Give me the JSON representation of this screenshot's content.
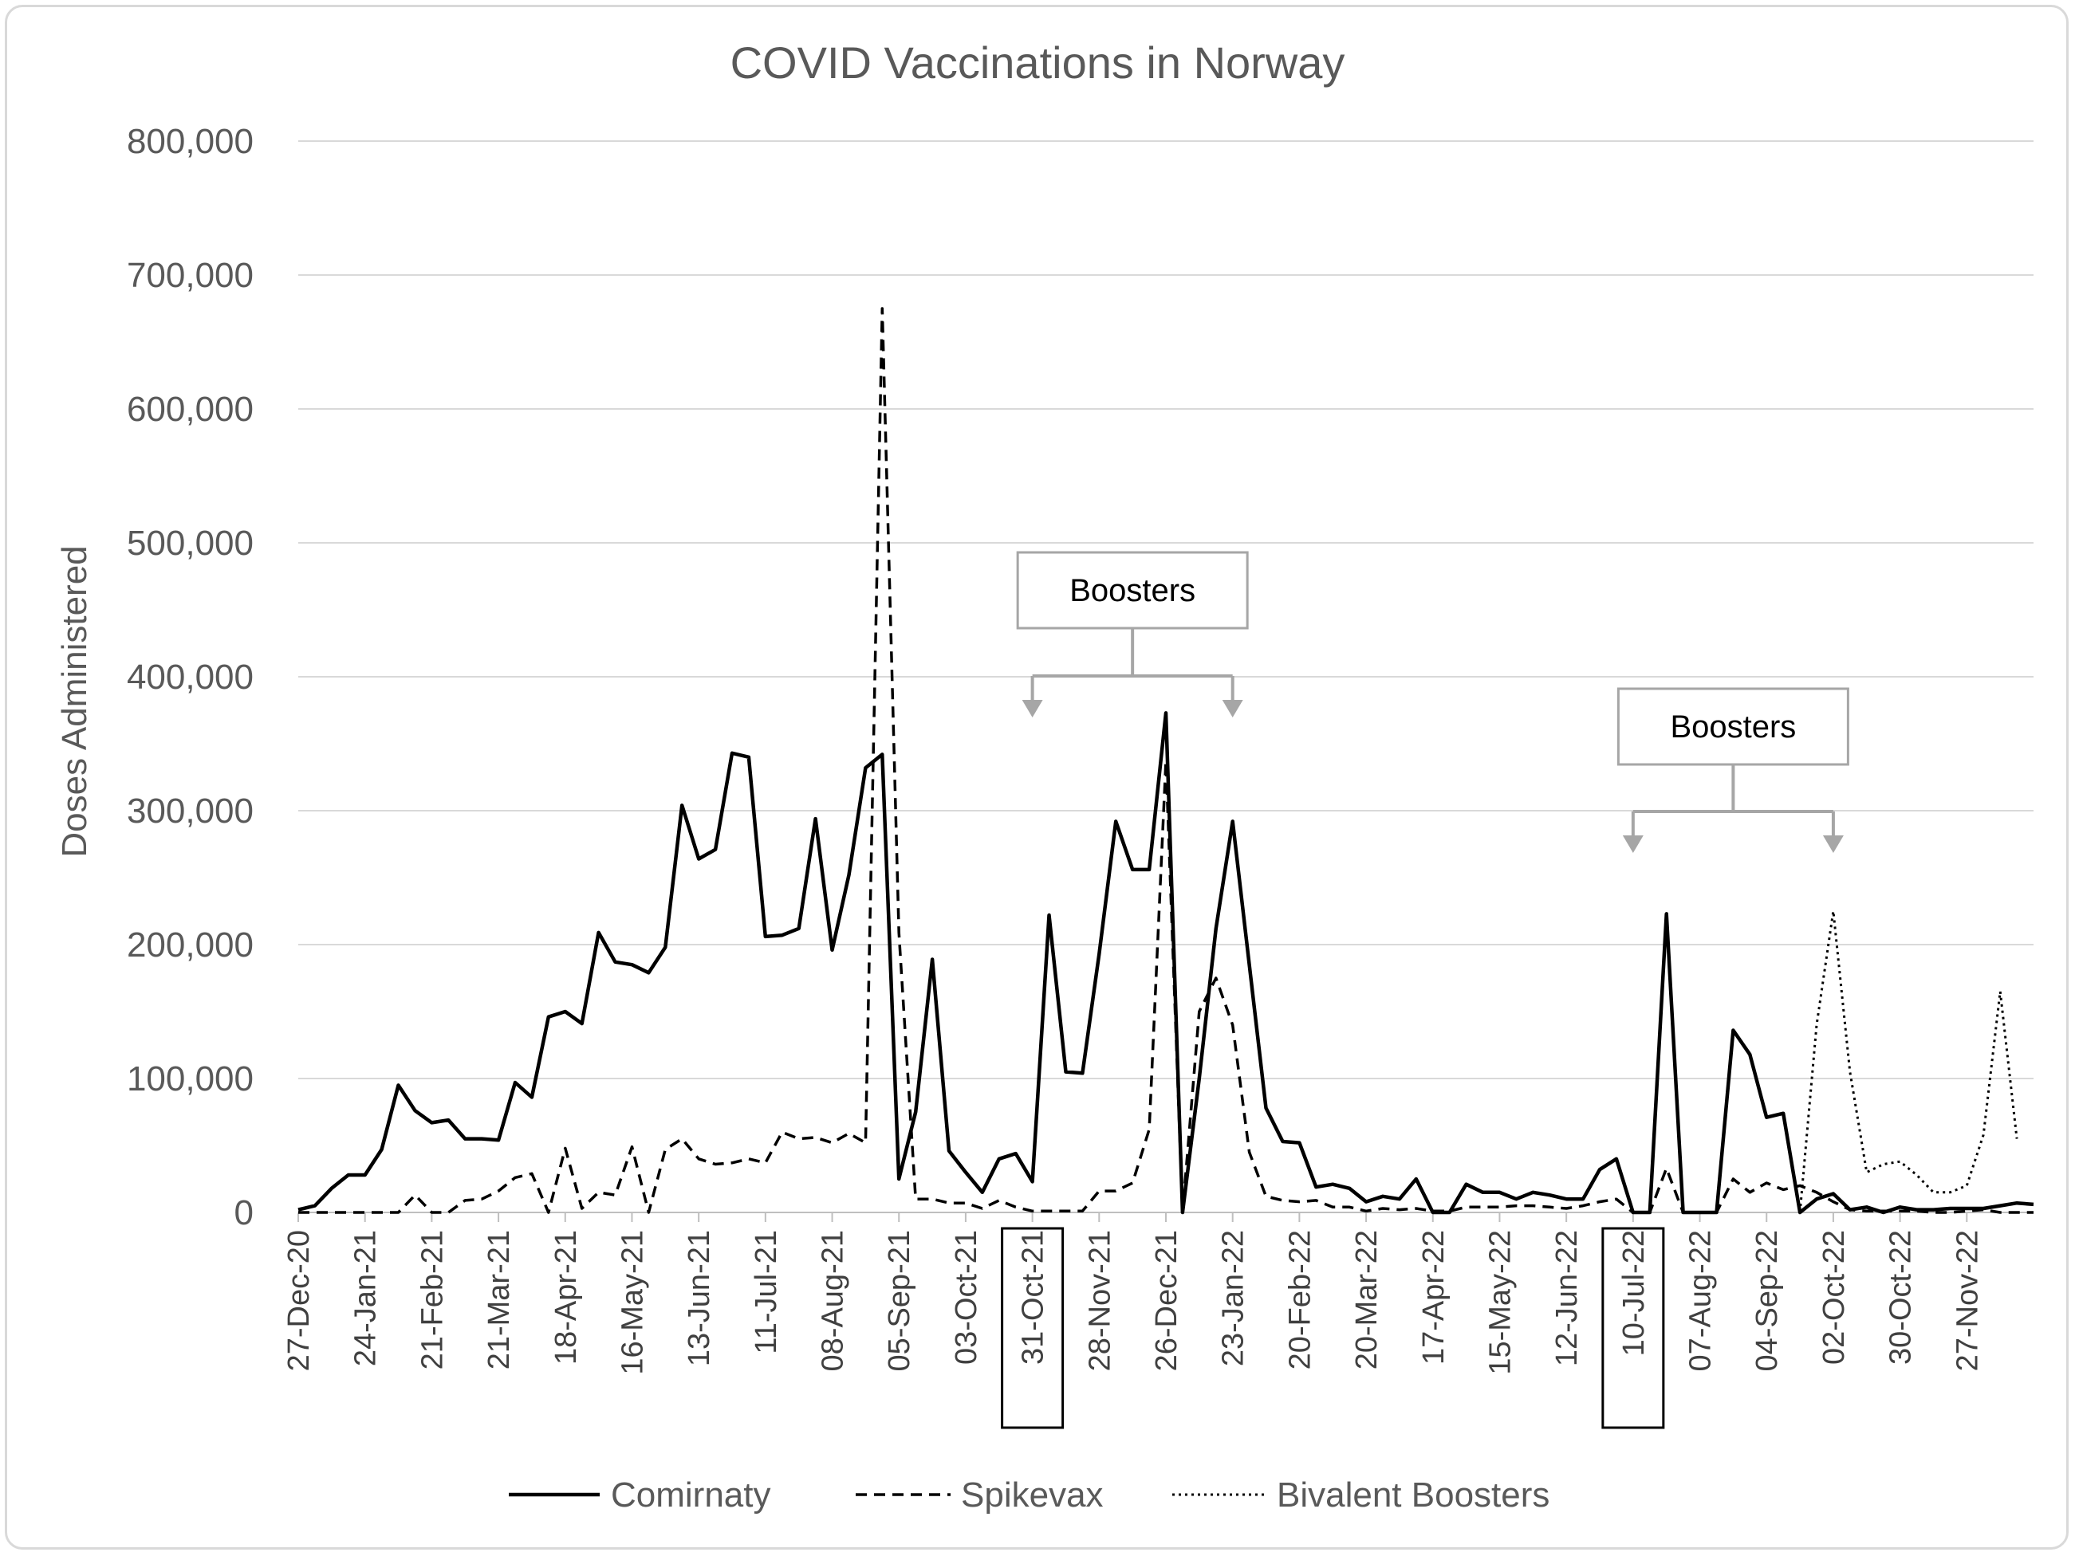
{
  "chart_data": {
    "type": "line",
    "title": "COVID Vaccinations in Norway",
    "ylabel": "Doses Administered",
    "xlabel": "",
    "ylim": [
      0,
      800000
    ],
    "yticks": [
      "0",
      "100,000",
      "200,000",
      "300,000",
      "400,000",
      "500,000",
      "600,000",
      "700,000",
      "800,000"
    ],
    "x_tick_labels": [
      "27-Dec-20",
      "24-Jan-21",
      "21-Feb-21",
      "21-Mar-21",
      "18-Apr-21",
      "16-May-21",
      "13-Jun-21",
      "11-Jul-21",
      "08-Aug-21",
      "05-Sep-21",
      "03-Oct-21",
      "31-Oct-21",
      "28-Nov-21",
      "26-Dec-21",
      "23-Jan-22",
      "20-Feb-22",
      "20-Mar-22",
      "17-Apr-22",
      "15-May-22",
      "12-Jun-22",
      "10-Jul-22",
      "07-Aug-22",
      "04-Sep-22",
      "02-Oct-22",
      "30-Oct-22",
      "27-Nov-22"
    ],
    "boxed_tick_labels": [
      "31-Oct-21",
      "10-Jul-22"
    ],
    "grid": true,
    "legend_position": "bottom",
    "x_start": "27-Dec-20",
    "x_interval": "1 week",
    "series": [
      {
        "name": "Comirnaty",
        "style": "solid",
        "values": [
          2000,
          5000,
          18000,
          28000,
          28000,
          47000,
          95000,
          76000,
          67000,
          69000,
          55000,
          55000,
          54000,
          97000,
          86000,
          146000,
          150000,
          141000,
          209000,
          187000,
          185000,
          179000,
          198000,
          304000,
          264000,
          271000,
          343000,
          340000,
          206000,
          207000,
          212000,
          294000,
          196000,
          252000,
          332000,
          342000,
          25000,
          75000,
          189000,
          46000,
          30000,
          15000,
          40000,
          44000,
          23000,
          222000,
          105000,
          104000,
          193000,
          292000,
          256000,
          256000,
          373000,
          0,
          100000,
          212000,
          292000,
          185000,
          78000,
          53000,
          52000,
          19000,
          21000,
          18000,
          8000,
          12000,
          10000,
          25000,
          0,
          0,
          21000,
          15000,
          15000,
          10000,
          15000,
          13000,
          10000,
          10000,
          32000,
          40000,
          0,
          0,
          223000,
          0,
          0,
          0,
          136000,
          118000,
          71000,
          74000,
          0,
          10000,
          14000,
          2000,
          4000,
          0,
          4000,
          2000,
          2000,
          3000,
          3000,
          3000,
          5000,
          7000,
          6000
        ],
        "color": "#000000"
      },
      {
        "name": "Spikevax",
        "style": "dashed",
        "values": [
          0,
          0,
          0,
          0,
          0,
          0,
          0,
          13000,
          0,
          0,
          9000,
          10000,
          16000,
          26000,
          29000,
          0,
          48000,
          3000,
          15000,
          13000,
          49000,
          0,
          47000,
          55000,
          40000,
          36000,
          37000,
          40000,
          37000,
          60000,
          55000,
          56000,
          52000,
          59000,
          52000,
          675000,
          209000,
          10000,
          10000,
          7000,
          7000,
          3000,
          9000,
          4000,
          1000,
          1000,
          1000,
          1000,
          16000,
          16000,
          22000,
          62000,
          337000,
          0,
          150000,
          175000,
          140000,
          45000,
          12000,
          9000,
          8000,
          9000,
          4000,
          4000,
          1000,
          3000,
          2000,
          3000,
          1000,
          1000,
          4000,
          4000,
          4000,
          5000,
          5000,
          4000,
          3000,
          5000,
          8000,
          10000,
          0,
          0,
          33000,
          0,
          0,
          0,
          25000,
          15000,
          22000,
          17000,
          20000,
          15000,
          8000,
          2000,
          1000,
          1000,
          1000,
          1000,
          0,
          0,
          1000,
          2000,
          0,
          0,
          0
        ],
        "color": "#000000"
      },
      {
        "name": "Bivalent Boosters",
        "style": "dotted",
        "start_index": 90,
        "values": [
          0,
          140000,
          225000,
          105000,
          30000,
          36000,
          38000,
          28000,
          15000,
          15000,
          20000,
          58000,
          165000,
          55000
        ],
        "color": "#000000"
      }
    ],
    "annotations": [
      {
        "label": "Boosters",
        "arrow_dates": [
          "31-Oct-21",
          "23-Jan-22"
        ]
      },
      {
        "label": "Boosters",
        "arrow_dates": [
          "10-Jul-22",
          "02-Oct-22"
        ]
      }
    ]
  }
}
